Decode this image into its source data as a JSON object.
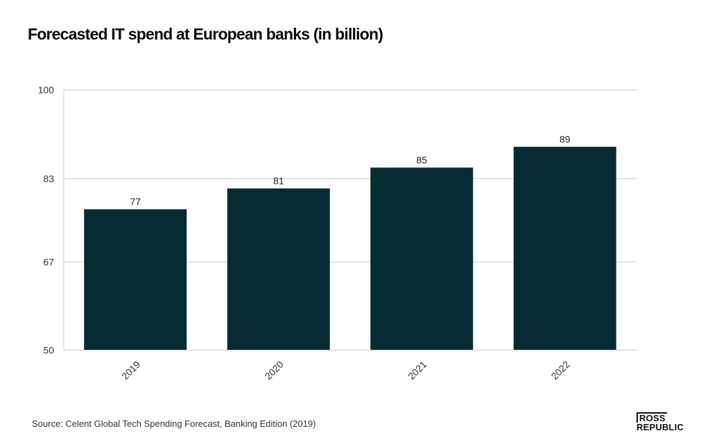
{
  "chart_data": {
    "type": "bar",
    "title": "Forecasted IT spend at European banks (in billion)",
    "categories": [
      "2019",
      "2020",
      "2021",
      "2022"
    ],
    "values": [
      77,
      81,
      85,
      89
    ],
    "ylim": [
      50,
      100
    ],
    "yticks": [
      "50",
      "67",
      "83",
      "100"
    ],
    "grid": true,
    "legend": "none",
    "bar_color": "#062b33"
  },
  "source": "Source: Celent Global Tech Spending Forecast, Banking Edition (2019)",
  "brand": {
    "line1": "ROSS",
    "line2": "REPUBLIC"
  }
}
